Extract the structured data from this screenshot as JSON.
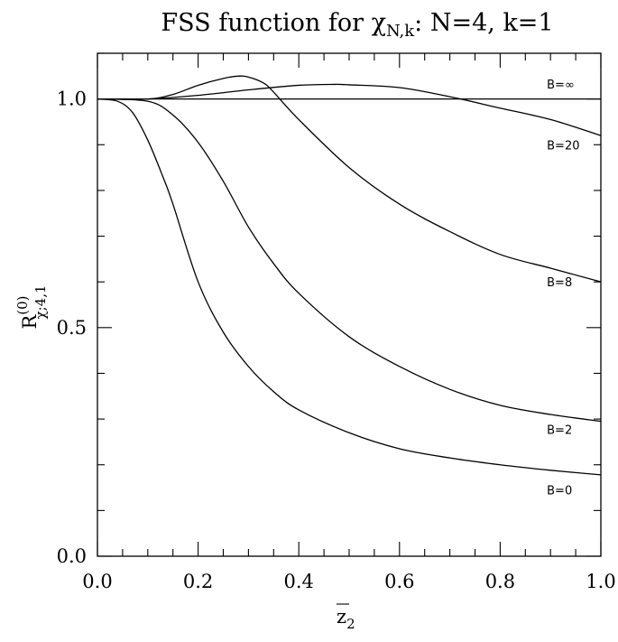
{
  "chart_data": {
    "type": "line",
    "title_main": "FSS function for χ",
    "title_sub": "N,k",
    "title_rest": ": N=4,  k=1",
    "xlabel": "z",
    "xlabel_sub": "2",
    "ylabel_main": "R",
    "ylabel_sup": "(0)",
    "ylabel_sub": "χ;4,1",
    "xlim": [
      0.0,
      1.0
    ],
    "ylim": [
      0.0,
      1.1
    ],
    "x_ticks": [
      "0.0",
      "0.2",
      "0.4",
      "0.6",
      "0.8",
      "1.0"
    ],
    "x_tick_values": [
      0.0,
      0.2,
      0.4,
      0.6,
      0.8,
      1.0
    ],
    "y_ticks": [
      "0.0",
      "0.5",
      "1.0"
    ],
    "y_tick_values": [
      0.0,
      0.5,
      1.0
    ],
    "grid": false,
    "series": [
      {
        "name": "B=∞",
        "x": [
          0.0,
          1.0
        ],
        "y": [
          1.0,
          1.0
        ]
      },
      {
        "name": "B=20",
        "x": [
          0.0,
          0.1,
          0.2,
          0.3,
          0.4,
          0.47,
          0.5,
          0.6,
          0.7,
          0.8,
          0.9,
          1.0
        ],
        "y": [
          1.0,
          1.0,
          1.008,
          1.02,
          1.03,
          1.032,
          1.031,
          1.025,
          1.005,
          0.98,
          0.955,
          0.92
        ]
      },
      {
        "name": "B=8",
        "x": [
          0.0,
          0.1,
          0.15,
          0.2,
          0.25,
          0.28,
          0.3,
          0.33,
          0.35,
          0.4,
          0.5,
          0.6,
          0.7,
          0.8,
          0.9,
          1.0
        ],
        "y": [
          1.0,
          1.0,
          1.01,
          1.03,
          1.045,
          1.05,
          1.048,
          1.035,
          1.015,
          0.955,
          0.85,
          0.77,
          0.71,
          0.66,
          0.63,
          0.6
        ]
      },
      {
        "name": "B=2",
        "x": [
          0.0,
          0.1,
          0.15,
          0.2,
          0.25,
          0.3,
          0.35,
          0.4,
          0.5,
          0.6,
          0.7,
          0.8,
          0.9,
          1.0
        ],
        "y": [
          1.0,
          0.995,
          0.965,
          0.905,
          0.82,
          0.72,
          0.64,
          0.575,
          0.48,
          0.415,
          0.365,
          0.33,
          0.31,
          0.295
        ]
      },
      {
        "name": "B=0",
        "x": [
          0.0,
          0.04,
          0.07,
          0.1,
          0.13,
          0.15,
          0.2,
          0.25,
          0.3,
          0.35,
          0.4,
          0.5,
          0.6,
          0.7,
          0.8,
          0.9,
          1.0
        ],
        "y": [
          1.0,
          0.995,
          0.97,
          0.91,
          0.83,
          0.77,
          0.6,
          0.49,
          0.415,
          0.36,
          0.32,
          0.27,
          0.235,
          0.215,
          0.2,
          0.188,
          0.178
        ]
      }
    ],
    "labels": [
      {
        "text": "B=∞",
        "x": 0.925,
        "y": 1.033
      },
      {
        "text": "B=20",
        "x": 0.925,
        "y": 0.9
      },
      {
        "text": "B=8",
        "x": 0.925,
        "y": 0.6
      },
      {
        "text": "B=2",
        "x": 0.925,
        "y": 0.277
      },
      {
        "text": "B=0",
        "x": 0.925,
        "y": 0.145
      }
    ]
  }
}
